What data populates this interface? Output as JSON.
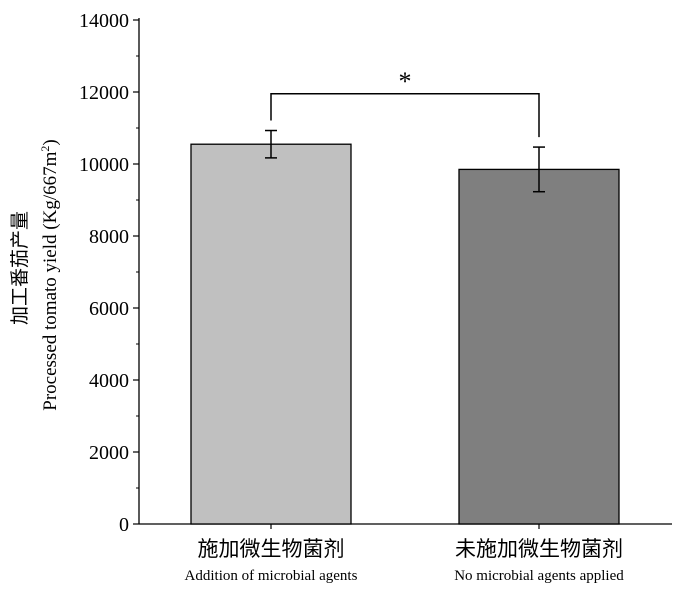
{
  "chart_data": {
    "type": "bar",
    "categories": [
      {
        "zh": "施加微生物菌剂",
        "en": "Addition of microbial agents"
      },
      {
        "zh": "未施加微生物菌剂",
        "en": "No microbial agents applied"
      }
    ],
    "values": [
      10550,
      9850
    ],
    "errors": [
      380,
      620
    ],
    "colors": [
      "#c0c0c0",
      "#7f7f7f"
    ],
    "ylabel_zh": "加工番茄产量",
    "ylabel_en_prefix": "Processed tomato yield (Kg/667m",
    "ylabel_en_sup": "2",
    "ylabel_en_suffix": ")",
    "ylim": [
      0,
      14000
    ],
    "yticks": [
      0,
      2000,
      4000,
      6000,
      8000,
      10000,
      12000,
      14000
    ],
    "ytick_labels": [
      "0",
      "2000",
      "4000",
      "6000",
      "8000",
      "10000",
      "12000",
      "14000"
    ],
    "significance": {
      "label": "*",
      "y": 11950
    },
    "grid": false
  }
}
